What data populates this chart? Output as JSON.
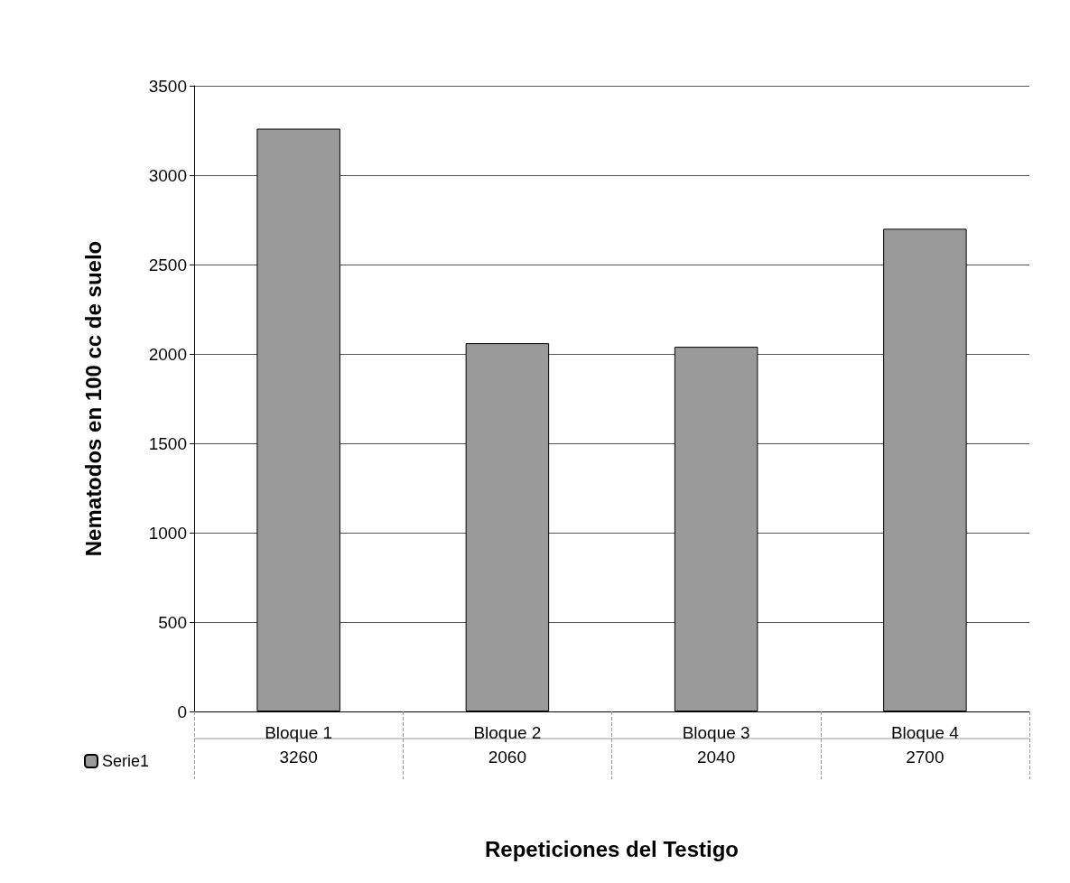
{
  "chart_data": {
    "type": "bar",
    "xlabel": "Repeticiones del Testigo",
    "ylabel": "Nematodos en 100 cc de suelo",
    "categories": [
      "Bloque 1",
      "Bloque 2",
      "Bloque 3",
      "Bloque 4"
    ],
    "series": [
      {
        "name": "Serie1",
        "color": "#9a9a9a",
        "values": [
          3260,
          2060,
          2040,
          2700
        ]
      }
    ],
    "ylim": [
      0,
      3500
    ],
    "yticks": [
      0,
      500,
      1000,
      1500,
      2000,
      2500,
      3000,
      3500
    ],
    "grid": "y",
    "legend": "bottom left",
    "data_labels": true
  }
}
